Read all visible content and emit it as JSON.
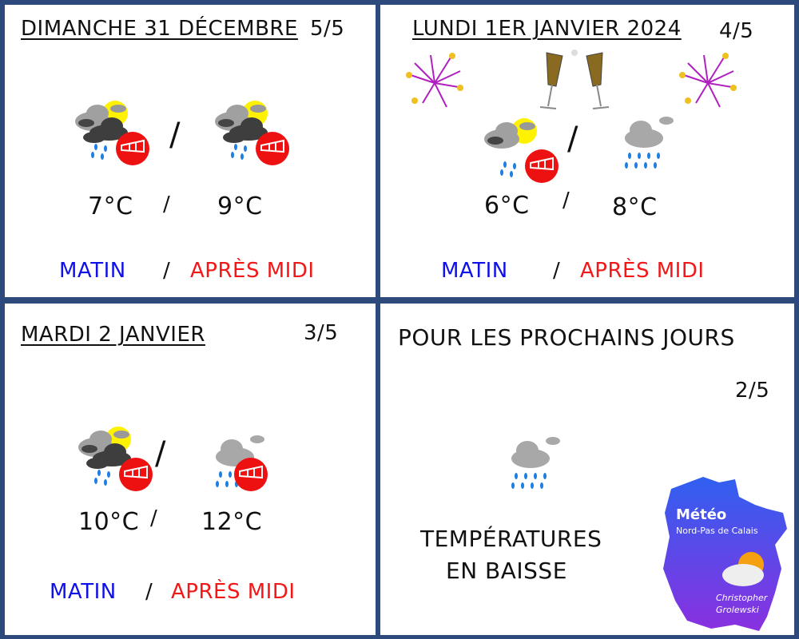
{
  "colors": {
    "border": "#2e4a7d",
    "morning": "#1010e8",
    "afternoon": "#f01818"
  },
  "day1": {
    "title": "DIMANCHE 31 DÉCEMBRE",
    "rating": "5/5",
    "temp_morning": "7°C",
    "temp_afternoon": "9°C",
    "sep": "/",
    "morning": "MATIN",
    "afternoon": "APRÈS MIDI",
    "icons": [
      "sun-cloud-rain-wind-icon",
      "sun-cloud-rain-wind-icon"
    ]
  },
  "day2": {
    "title": "LUNDI 1ER JANVIER 2024",
    "rating": "4/5",
    "temp_morning": "6°C",
    "temp_afternoon": "8°C",
    "sep": "/",
    "morning": "MATIN",
    "afternoon": "APRÈS MIDI",
    "icons": [
      "sun-cloud-rain-wind-icon",
      "cloud-rain-icon"
    ],
    "decorations": [
      "fireworks-icon",
      "champagne-icon",
      "fireworks-icon"
    ]
  },
  "day3": {
    "title": "MARDI 2 JANVIER",
    "rating": "3/5",
    "temp_morning": "10°C",
    "temp_afternoon": "12°C",
    "sep": "/",
    "morning": "MATIN",
    "afternoon": "APRÈS MIDI",
    "icons": [
      "sun-cloud-rain-wind-icon",
      "cloud-rain-wind-icon"
    ]
  },
  "outlook": {
    "title": "POUR LES PROCHAINS JOURS",
    "rating": "2/5",
    "line1": "TEMPÉRATURES",
    "line2": "EN BAISSE",
    "icon": "cloud-rain-icon"
  },
  "logo": {
    "title": "Météo",
    "subtitle": "Nord-Pas de Calais",
    "author1": "Christopher",
    "author2": "Grolewski"
  }
}
